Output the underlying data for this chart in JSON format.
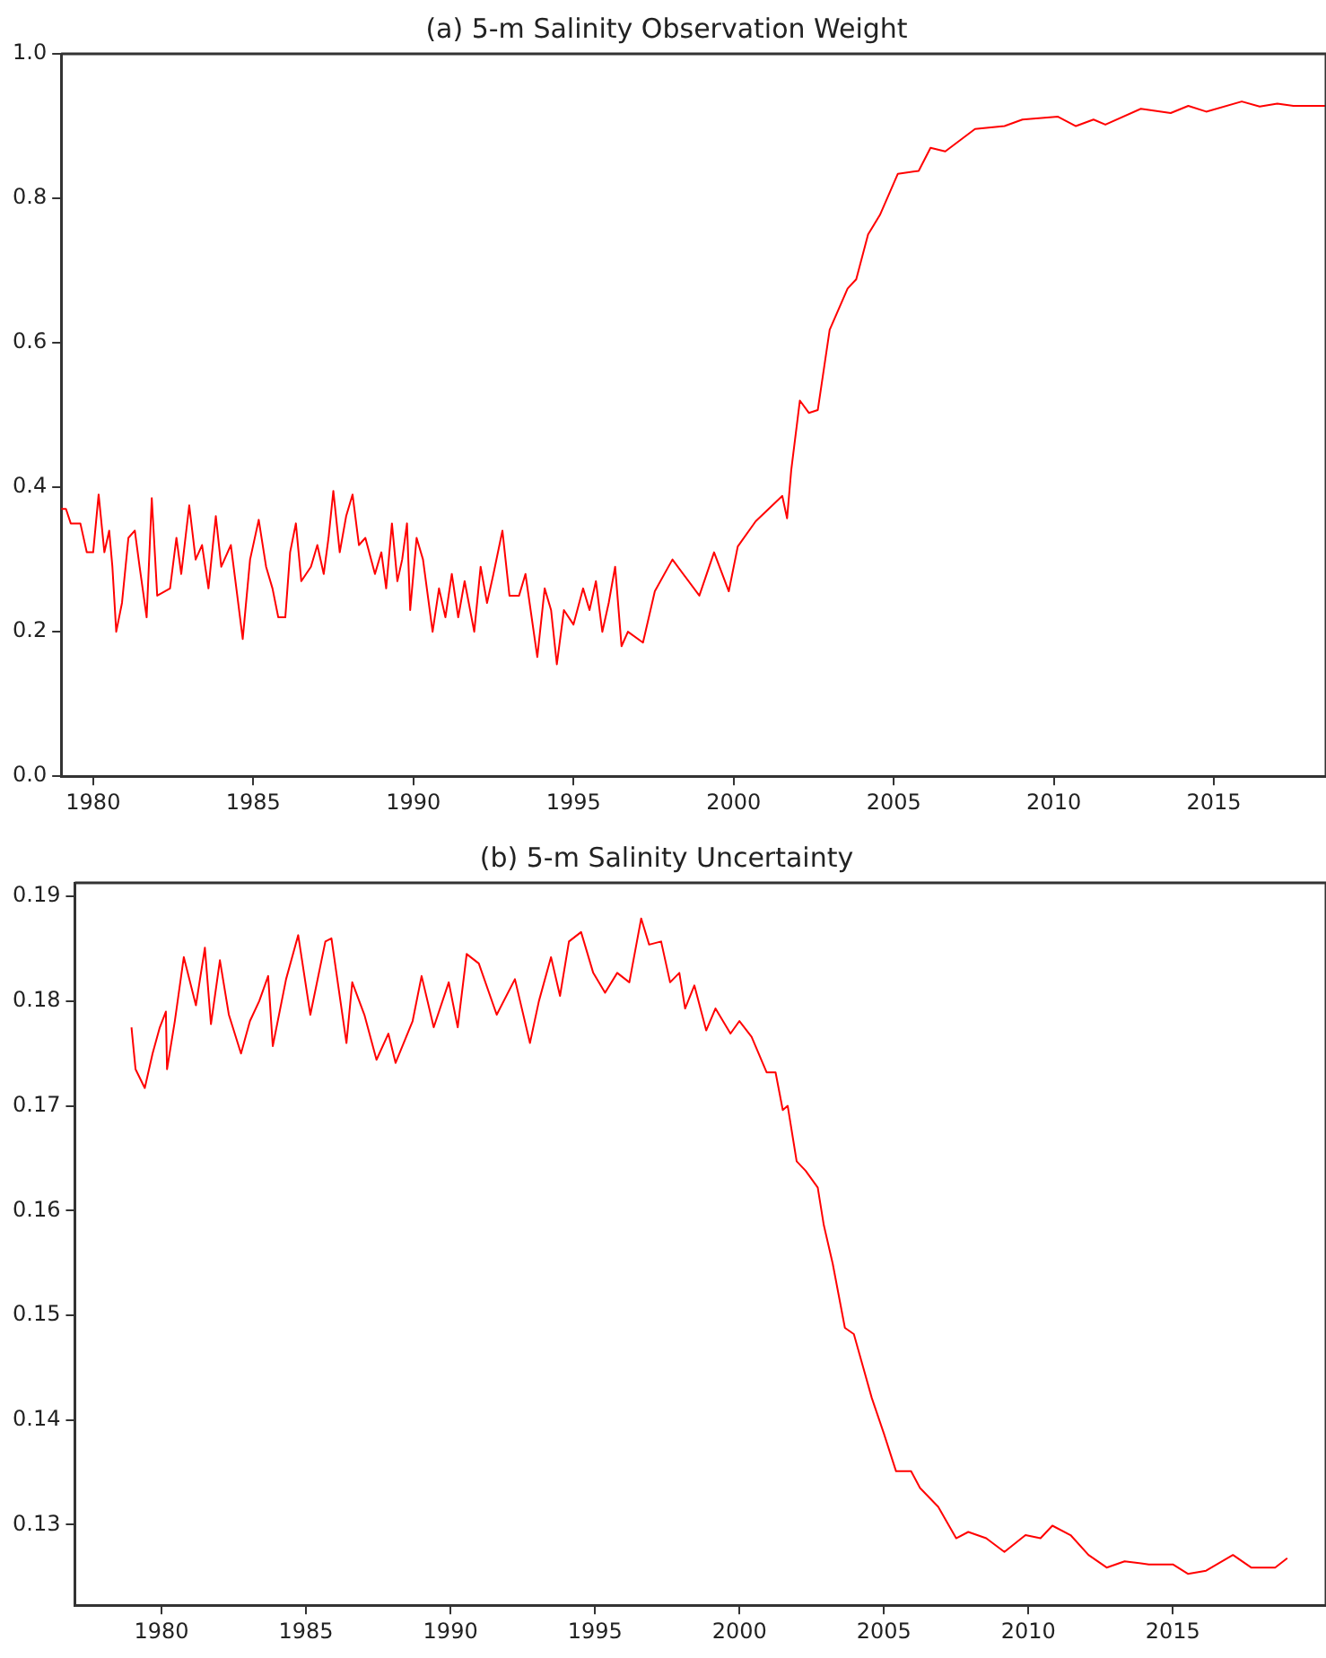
{
  "chart_data": [
    {
      "type": "line",
      "title": "(a) 5-m Salinity Observation Weight",
      "xlim": [
        1979,
        2018.5
      ],
      "xticks": [
        1980,
        1985,
        1990,
        1995,
        2000,
        2005,
        2010,
        2015
      ],
      "ylim": [
        0,
        1
      ],
      "yticks": [
        {
          "value": 0,
          "label": "0.0"
        },
        0.2,
        0.4,
        0.6,
        0.8,
        {
          "value": 1,
          "label": "1.0"
        }
      ],
      "grid": false,
      "legend": false,
      "x": [
        1979.0,
        1979.15,
        1979.3,
        1979.6,
        1979.8,
        1980.0,
        1980.17,
        1980.35,
        1980.5,
        1980.6,
        1980.72,
        1980.9,
        1981.1,
        1981.3,
        1981.45,
        1981.67,
        1981.83,
        1982.0,
        1982.4,
        1982.6,
        1982.75,
        1983.0,
        1983.2,
        1983.4,
        1983.6,
        1983.83,
        1984.0,
        1984.3,
        1984.5,
        1984.67,
        1984.9,
        1985.17,
        1985.4,
        1985.6,
        1985.78,
        1986.0,
        1986.15,
        1986.33,
        1986.5,
        1986.8,
        1987.0,
        1987.2,
        1987.35,
        1987.5,
        1987.7,
        1987.9,
        1988.1,
        1988.3,
        1988.5,
        1988.8,
        1989.0,
        1989.15,
        1989.33,
        1989.5,
        1989.65,
        1989.8,
        1989.9,
        1990.1,
        1990.3,
        1990.6,
        1990.8,
        1991.0,
        1991.2,
        1991.4,
        1991.6,
        1991.9,
        1992.1,
        1992.3,
        1992.5,
        1992.78,
        1993.0,
        1993.3,
        1993.5,
        1993.87,
        1994.1,
        1994.3,
        1994.48,
        1994.7,
        1995.0,
        1995.3,
        1995.5,
        1995.7,
        1995.9,
        1996.1,
        1996.3,
        1996.5,
        1996.7,
        1997.17,
        1997.54,
        1998.09,
        1998.93,
        1999.39,
        1999.85,
        2000.13,
        2000.69,
        2001.52,
        2001.67,
        2001.8,
        2002.07,
        2002.35,
        2002.63,
        2003.0,
        2003.56,
        2003.83,
        2004.2,
        2004.57,
        2005.13,
        2005.78,
        2006.15,
        2006.61,
        2007.54,
        2008.46,
        2009.02,
        2010.13,
        2010.69,
        2011.24,
        2011.61,
        2012.72,
        2013.65,
        2014.2,
        2014.76,
        2015.87,
        2016.43,
        2016.98,
        2017.48,
        2018.5
      ],
      "series": [
        {
          "color": "#ff0000",
          "values": [
            0.37,
            0.37,
            0.35,
            0.35,
            0.31,
            0.31,
            0.39,
            0.31,
            0.34,
            0.29,
            0.2,
            0.24,
            0.33,
            0.34,
            0.29,
            0.22,
            0.385,
            0.25,
            0.26,
            0.33,
            0.28,
            0.375,
            0.3,
            0.32,
            0.26,
            0.36,
            0.29,
            0.32,
            0.25,
            0.19,
            0.3,
            0.355,
            0.29,
            0.26,
            0.22,
            0.22,
            0.31,
            0.35,
            0.27,
            0.29,
            0.32,
            0.28,
            0.33,
            0.395,
            0.31,
            0.36,
            0.39,
            0.32,
            0.33,
            0.28,
            0.31,
            0.26,
            0.35,
            0.27,
            0.3,
            0.35,
            0.23,
            0.33,
            0.3,
            0.2,
            0.26,
            0.22,
            0.28,
            0.22,
            0.27,
            0.2,
            0.29,
            0.24,
            0.28,
            0.34,
            0.25,
            0.25,
            0.28,
            0.165,
            0.26,
            0.23,
            0.155,
            0.23,
            0.21,
            0.26,
            0.23,
            0.27,
            0.2,
            0.24,
            0.29,
            0.18,
            0.2,
            0.185,
            0.256,
            0.3,
            0.25,
            0.31,
            0.256,
            0.318,
            0.353,
            0.388,
            0.357,
            0.424,
            0.52,
            0.503,
            0.507,
            0.618,
            0.675,
            0.688,
            0.75,
            0.777,
            0.834,
            0.838,
            0.87,
            0.865,
            0.896,
            0.9,
            0.909,
            0.913,
            0.9,
            0.909,
            0.902,
            0.924,
            0.918,
            0.928,
            0.92,
            0.934,
            0.927,
            0.931,
            0.928,
            0.928
          ]
        }
      ]
    },
    {
      "type": "line",
      "title": "(b) 5-m Salinity Uncertainty",
      "xlim": [
        1977,
        2020.3
      ],
      "xticks": [
        1980,
        1985,
        1990,
        1995,
        2000,
        2005,
        2010,
        2015
      ],
      "ylim": [
        0.1223,
        0.1913
      ],
      "yticks": [
        0.13,
        0.14,
        0.15,
        0.16,
        0.17,
        0.18,
        0.19
      ],
      "grid": false,
      "legend": false,
      "x": [
        1978.96,
        1979.1,
        1979.42,
        1979.69,
        1979.94,
        1980.15,
        1980.19,
        1980.46,
        1980.77,
        1981.19,
        1981.5,
        1981.71,
        1982.02,
        1982.33,
        1982.75,
        1983.06,
        1983.38,
        1983.69,
        1983.85,
        1984.31,
        1984.73,
        1985.15,
        1985.67,
        1985.88,
        1986.4,
        1986.6,
        1987.02,
        1987.44,
        1987.85,
        1988.1,
        1988.69,
        1989.0,
        1989.42,
        1989.94,
        1990.25,
        1990.56,
        1990.98,
        1991.6,
        1992.23,
        1992.75,
        1993.06,
        1993.48,
        1993.79,
        1994.1,
        1994.52,
        1994.94,
        1995.35,
        1995.77,
        1996.19,
        1996.6,
        1996.875,
        1997.29,
        1997.6,
        1997.92,
        1998.12,
        1998.44,
        1998.85,
        1999.17,
        1999.69,
        2000.0,
        2000.42,
        2000.94,
        2001.25,
        2001.5,
        2001.67,
        2001.98,
        2002.29,
        2002.71,
        2002.92,
        2003.23,
        2003.65,
        2003.96,
        2004.58,
        2005.0,
        2005.42,
        2005.94,
        2006.25,
        2006.88,
        2007.5,
        2007.92,
        2008.54,
        2009.17,
        2009.9,
        2010.42,
        2010.83,
        2011.46,
        2012.08,
        2012.71,
        2013.33,
        2014.17,
        2015.0,
        2015.52,
        2016.15,
        2017.08,
        2017.71,
        2018.54,
        2018.96
      ],
      "series": [
        {
          "color": "#ff0000",
          "values": [
            0.1775,
            0.1735,
            0.1717,
            0.175,
            0.1775,
            0.179,
            0.1735,
            0.1781,
            0.1842,
            0.1796,
            0.1851,
            0.1778,
            0.1839,
            0.1787,
            0.175,
            0.1781,
            0.18,
            0.1824,
            0.1757,
            0.1821,
            0.1863,
            0.1787,
            0.1857,
            0.186,
            0.176,
            0.1818,
            0.1787,
            0.1744,
            0.1769,
            0.1741,
            0.1781,
            0.1824,
            0.1775,
            0.1818,
            0.1775,
            0.1845,
            0.1836,
            0.1787,
            0.1821,
            0.176,
            0.18,
            0.1842,
            0.1805,
            0.1857,
            0.1866,
            0.1827,
            0.1808,
            0.1827,
            0.1818,
            0.1879,
            0.1854,
            0.1857,
            0.1818,
            0.1827,
            0.1793,
            0.1815,
            0.1772,
            0.1793,
            0.1769,
            0.1781,
            0.1766,
            0.1732,
            0.1732,
            0.1696,
            0.17,
            0.1647,
            0.1638,
            0.1622,
            0.1586,
            0.1549,
            0.1488,
            0.1482,
            0.1421,
            0.1387,
            0.1351,
            0.1351,
            0.1335,
            0.1317,
            0.1287,
            0.1293,
            0.1287,
            0.1274,
            0.129,
            0.1287,
            0.1299,
            0.129,
            0.1271,
            0.1259,
            0.1265,
            0.1262,
            0.1262,
            0.1253,
            0.1256,
            0.1271,
            0.1259,
            0.1259,
            0.1268
          ]
        }
      ]
    }
  ]
}
